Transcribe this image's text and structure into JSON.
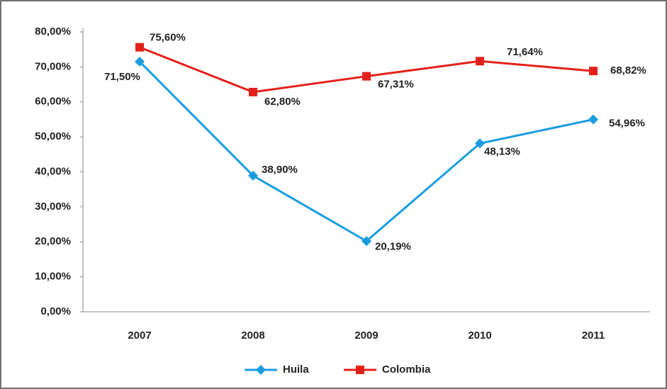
{
  "chart_data": {
    "type": "line",
    "categories": [
      "2007",
      "2008",
      "2009",
      "2010",
      "2011"
    ],
    "series": [
      {
        "name": "Huila",
        "color": "#1a9de0",
        "marker": "diamond",
        "values": [
          71.5,
          38.9,
          20.19,
          48.13,
          54.96
        ],
        "value_labels": [
          "71,50%",
          "38,90%",
          "20,19%",
          "48,13%",
          "54,96%"
        ]
      },
      {
        "name": "Colombia",
        "color": "#e3211c",
        "marker": "square",
        "values": [
          75.6,
          62.8,
          67.31,
          71.64,
          68.82
        ],
        "value_labels": [
          "75,60%",
          "62,80%",
          "67,31%",
          "71,64%",
          "68,82%"
        ]
      }
    ],
    "ylim": [
      0,
      80
    ],
    "yticks": [
      {
        "value": 0,
        "label": "0,00%"
      },
      {
        "value": 10,
        "label": "10,00%"
      },
      {
        "value": 20,
        "label": "20,00%"
      },
      {
        "value": 30,
        "label": "30,00%"
      },
      {
        "value": 40,
        "label": "40,00%"
      },
      {
        "value": 50,
        "label": "50,00%"
      },
      {
        "value": 60,
        "label": "60,00%"
      },
      {
        "value": 70,
        "label": "70,00%"
      },
      {
        "value": 80,
        "label": "80,00%"
      }
    ],
    "legend": "bottom"
  }
}
